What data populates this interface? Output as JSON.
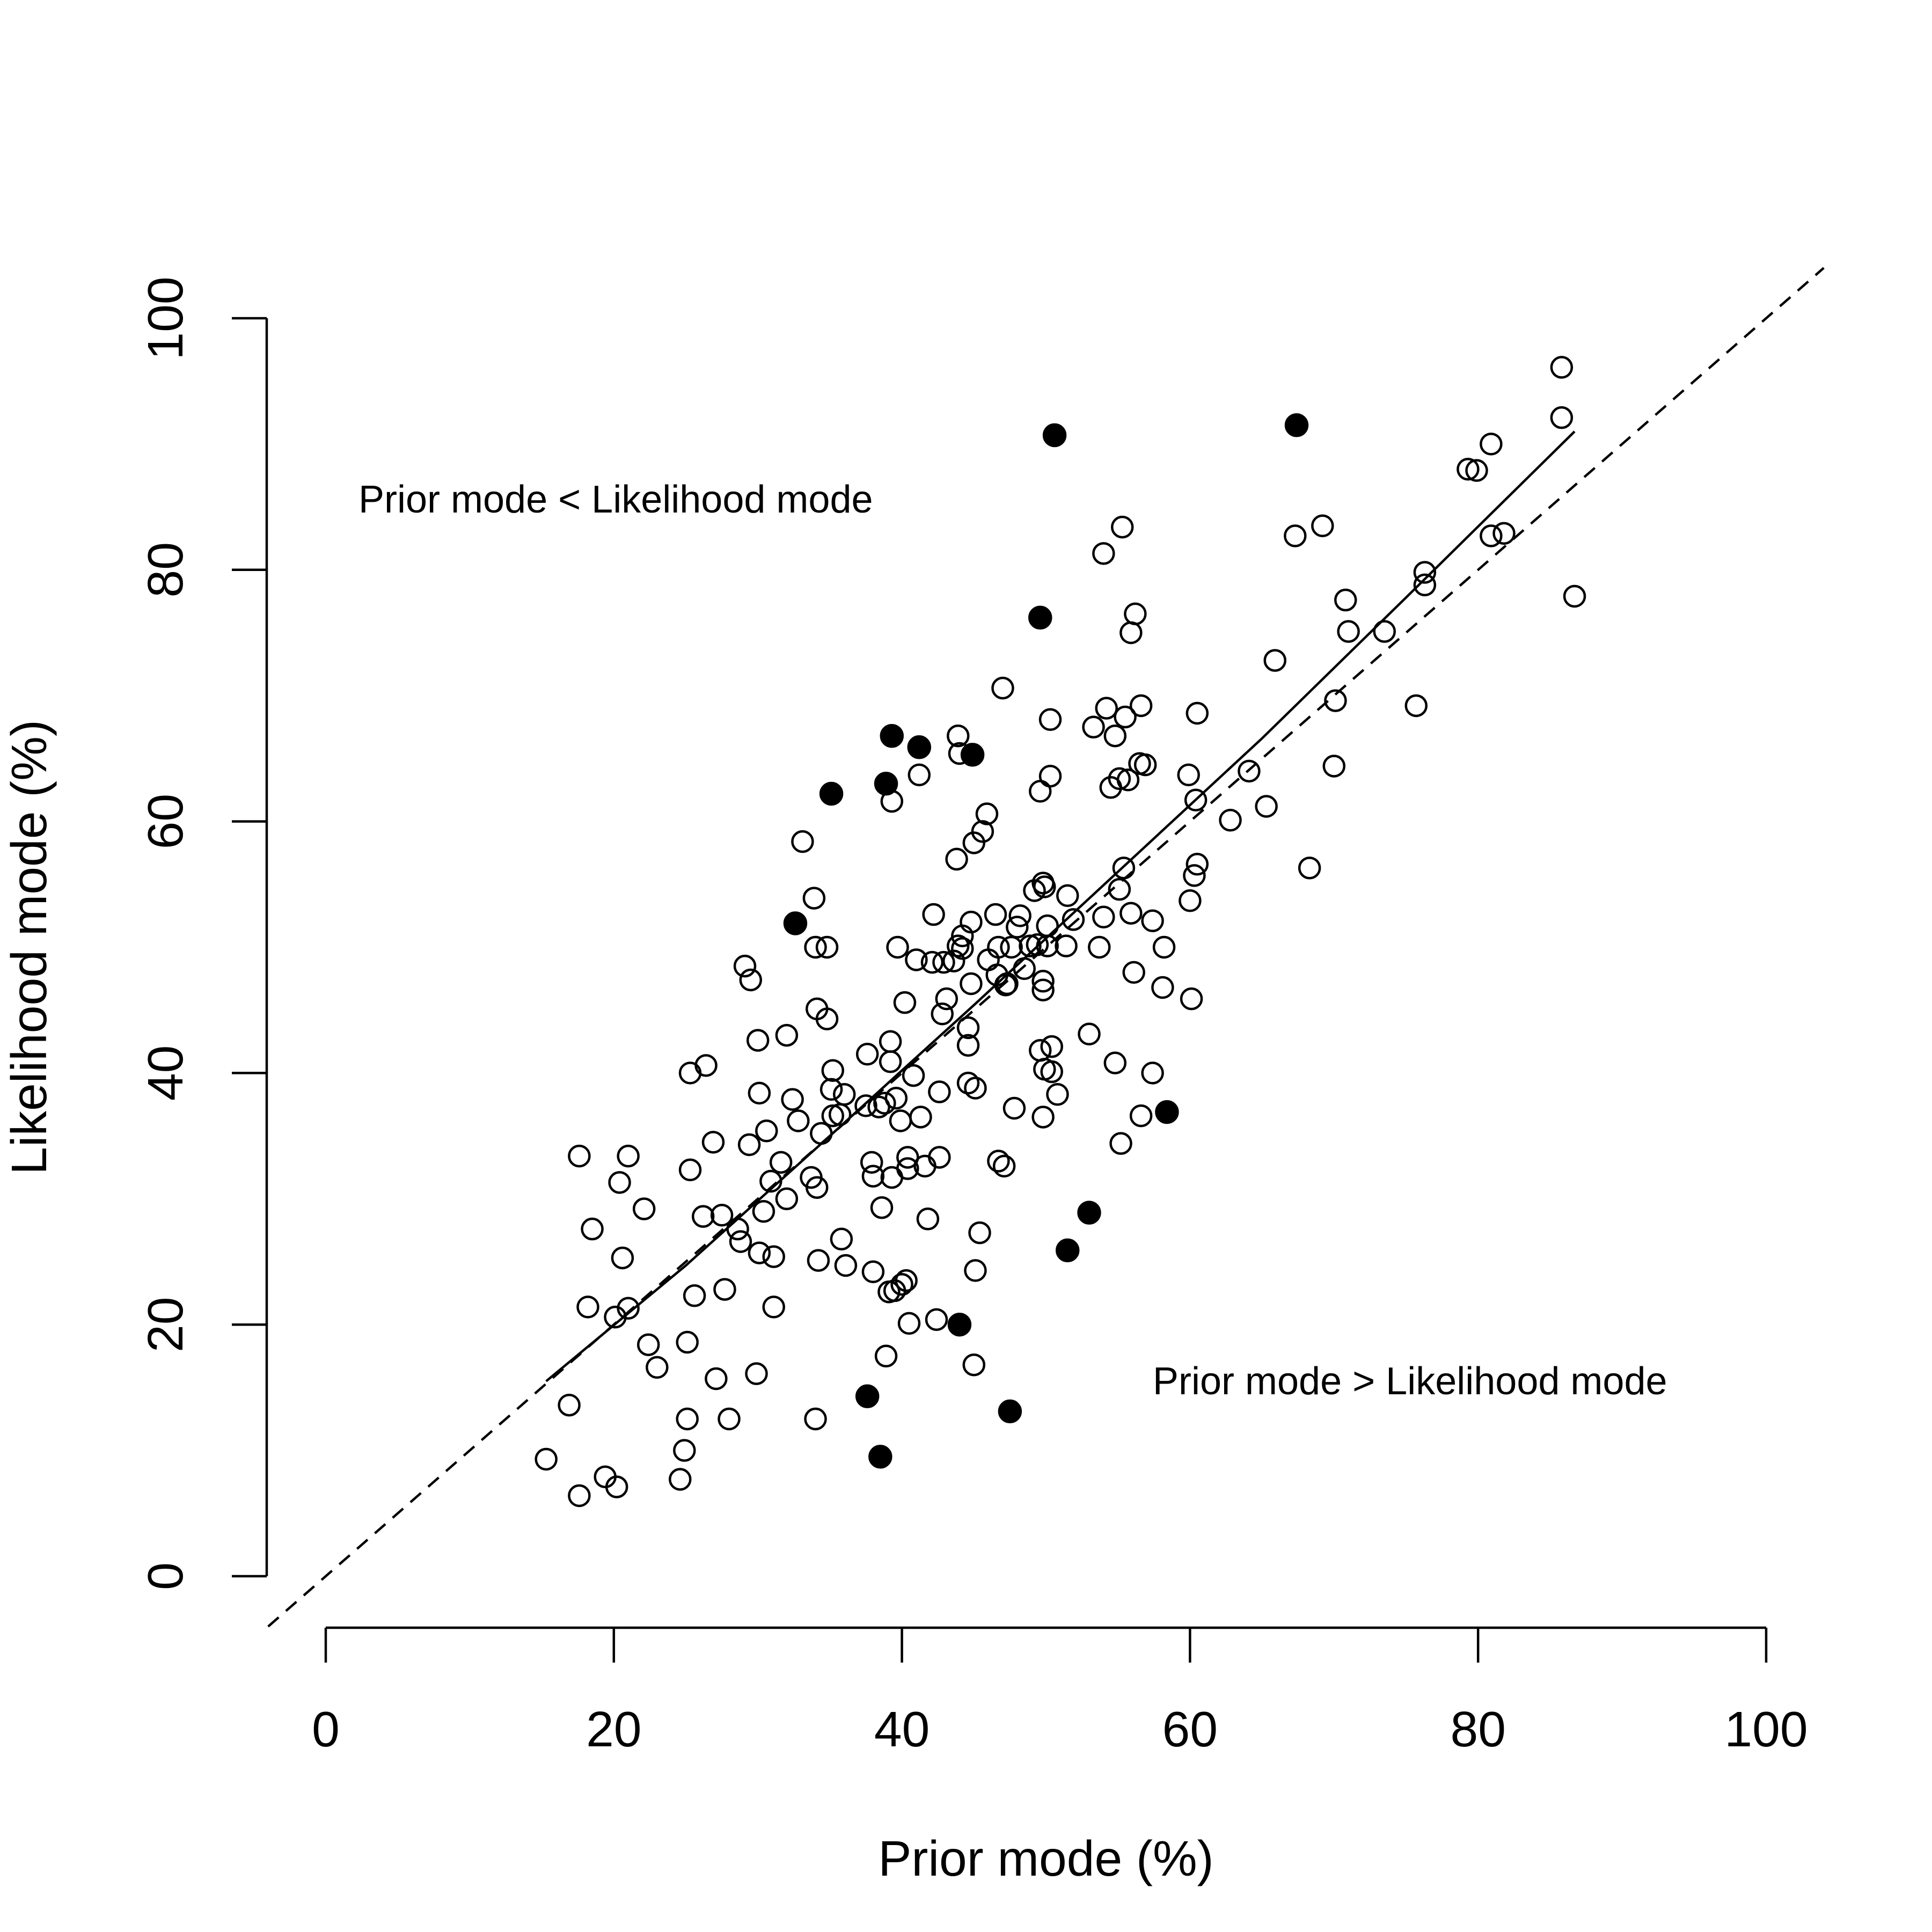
{
  "chart_data": {
    "type": "scatter",
    "xlabel": "Prior mode (%)",
    "ylabel": "Likelihood mode (%)",
    "xlim": [
      -4,
      104
    ],
    "ylim": [
      -4,
      104
    ],
    "x_ticks": [
      0,
      20,
      40,
      60,
      80,
      100
    ],
    "y_ticks": [
      0,
      20,
      40,
      60,
      80,
      100
    ],
    "x_tick_labels": [
      "0",
      "20",
      "40",
      "60",
      "80",
      "100"
    ],
    "y_tick_labels": [
      "0",
      "20",
      "40",
      "60",
      "80",
      "100"
    ],
    "annotations": {
      "upper": "Prior mode < Likelihood mode",
      "lower": "Prior mode > Likelihood mode"
    },
    "reference_line": {
      "style": "dashed",
      "points": [
        [
          -4,
          -4
        ],
        [
          104,
          104
        ]
      ]
    },
    "fit_line": {
      "style": "solid",
      "points": [
        [
          15.3,
          15.5
        ],
        [
          25,
          24.7
        ],
        [
          35,
          35.0
        ],
        [
          45,
          45.4
        ],
        [
          55,
          56.0
        ],
        [
          65,
          66.6
        ],
        [
          75,
          77.8
        ],
        [
          86.7,
          91.0
        ]
      ]
    },
    "series": [
      {
        "marker": "open-circle",
        "points": [
          [
            15.3,
            9.3
          ],
          [
            16.9,
            13.6
          ],
          [
            17.6,
            6.4
          ],
          [
            17.6,
            33.4
          ],
          [
            18.2,
            21.4
          ],
          [
            18.5,
            27.6
          ],
          [
            19.4,
            7.9
          ],
          [
            20.1,
            20.6
          ],
          [
            20.2,
            7.1
          ],
          [
            20.4,
            31.3
          ],
          [
            20.6,
            25.3
          ],
          [
            21,
            33.4
          ],
          [
            21,
            21.3
          ],
          [
            22.1,
            29.2
          ],
          [
            22.4,
            18.4
          ],
          [
            23,
            16.6
          ],
          [
            24.6,
            7.7
          ],
          [
            24.9,
            10.0
          ],
          [
            25.1,
            12.5
          ],
          [
            25.1,
            18.6
          ],
          [
            25.3,
            32.3
          ],
          [
            25.3,
            40.0
          ],
          [
            25.6,
            22.3
          ],
          [
            26.2,
            28.6
          ],
          [
            26.4,
            40.6
          ],
          [
            26.9,
            34.5
          ],
          [
            27.1,
            15.7
          ],
          [
            27.5,
            28.7
          ],
          [
            27.7,
            22.8
          ],
          [
            28,
            12.5
          ],
          [
            28.6,
            27.6
          ],
          [
            28.8,
            26.6
          ],
          [
            29.1,
            48.5
          ],
          [
            29.4,
            34.3
          ],
          [
            29.5,
            47.4
          ],
          [
            29.9,
            16.1
          ],
          [
            30,
            42.6
          ],
          [
            30.1,
            38.4
          ],
          [
            30.1,
            25.7
          ],
          [
            30.4,
            29.0
          ],
          [
            30.6,
            35.4
          ],
          [
            30.9,
            31.4
          ],
          [
            31.1,
            21.4
          ],
          [
            31.1,
            25.4
          ],
          [
            31.6,
            32.9
          ],
          [
            32,
            30.0
          ],
          [
            32,
            43.0
          ],
          [
            32.4,
            37.9
          ],
          [
            32.8,
            36.2
          ],
          [
            33.1,
            58.4
          ],
          [
            33.7,
            31.7
          ],
          [
            33.9,
            53.9
          ],
          [
            34,
            50.0
          ],
          [
            34.1,
            45.1
          ],
          [
            34,
            12.5
          ],
          [
            34.2,
            25.1
          ],
          [
            34.1,
            30.9
          ],
          [
            34.4,
            35.2
          ],
          [
            34.8,
            44.3
          ],
          [
            35.1,
            38.7
          ],
          [
            35.2,
            40.2
          ],
          [
            35.2,
            36.6
          ],
          [
            34.8,
            50.0
          ],
          [
            35.7,
            36.7
          ],
          [
            35.8,
            26.8
          ],
          [
            36,
            38.3
          ],
          [
            36.1,
            24.7
          ],
          [
            37.5,
            37.4
          ],
          [
            37.6,
            41.5
          ],
          [
            37.9,
            32.9
          ],
          [
            38,
            31.8
          ],
          [
            38,
            24.2
          ],
          [
            38.4,
            37.3
          ],
          [
            38.6,
            29.3
          ],
          [
            38.8,
            37.6
          ],
          [
            38.9,
            17.5
          ],
          [
            39.1,
            22.6
          ],
          [
            39.2,
            42.5
          ],
          [
            39.2,
            40.9
          ],
          [
            39.3,
            31.7
          ],
          [
            39.3,
            61.6
          ],
          [
            39.5,
            22.7
          ],
          [
            39.6,
            38.0
          ],
          [
            39.7,
            50.0
          ],
          [
            39.9,
            36.2
          ],
          [
            40,
            23.2
          ],
          [
            40.2,
            45.6
          ],
          [
            40.4,
            32.4
          ],
          [
            40.4,
            33.3
          ],
          [
            40.3,
            23.5
          ],
          [
            40.5,
            20.1
          ],
          [
            40.8,
            39.8
          ],
          [
            41,
            49.0
          ],
          [
            41.2,
            63.7
          ],
          [
            41.3,
            36.5
          ],
          [
            41.6,
            32.6
          ],
          [
            41.8,
            28.4
          ],
          [
            42.1,
            48.8
          ],
          [
            42.2,
            52.6
          ],
          [
            42.4,
            20.4
          ],
          [
            42.6,
            38.5
          ],
          [
            42.6,
            33.3
          ],
          [
            42.8,
            44.7
          ],
          [
            42.9,
            48.8
          ],
          [
            43.1,
            45.9
          ],
          [
            43.6,
            48.9
          ],
          [
            43.8,
            57.0
          ],
          [
            43.9,
            66.8
          ],
          [
            43.9,
            50.1
          ],
          [
            44,
            65.4
          ],
          [
            44.2,
            50.9
          ],
          [
            44.2,
            49.9
          ],
          [
            44.6,
            43.6
          ],
          [
            44.6,
            42.2
          ],
          [
            44.6,
            39.2
          ],
          [
            44.8,
            47.1
          ],
          [
            44.8,
            52.0
          ],
          [
            45,
            58.3
          ],
          [
            45.1,
            24.3
          ],
          [
            45,
            16.8
          ],
          [
            45.1,
            38.8
          ],
          [
            45.4,
            27.3
          ],
          [
            45.6,
            59.2
          ],
          [
            45.9,
            60.6
          ],
          [
            46,
            49.0
          ],
          [
            46.5,
            52.6
          ],
          [
            46.6,
            47.8
          ],
          [
            46.7,
            50.0
          ],
          [
            46.7,
            33.0
          ],
          [
            47,
            70.6
          ],
          [
            47.1,
            32.6
          ],
          [
            47.2,
            47.0
          ],
          [
            47.3,
            47.1
          ],
          [
            47.6,
            50.0
          ],
          [
            47.8,
            37.2
          ],
          [
            48,
            51.6
          ],
          [
            48.2,
            52.5
          ],
          [
            48.5,
            48.3
          ],
          [
            48.9,
            50.1
          ],
          [
            49.2,
            54.5
          ],
          [
            49.4,
            50.2
          ],
          [
            49.6,
            62.4
          ],
          [
            49.6,
            41.8
          ],
          [
            49.8,
            55.1
          ],
          [
            49.9,
            54.8
          ],
          [
            49.8,
            47.3
          ],
          [
            49.8,
            46.6
          ],
          [
            49.9,
            40.3
          ],
          [
            49.8,
            36.5
          ],
          [
            50.1,
            51.7
          ],
          [
            50.1,
            50.1
          ],
          [
            50.3,
            68.1
          ],
          [
            50.3,
            63.6
          ],
          [
            50.4,
            42.1
          ],
          [
            50.4,
            40.1
          ],
          [
            50.8,
            38.3
          ],
          [
            51.4,
            50.1
          ],
          [
            51.5,
            54.1
          ],
          [
            51.9,
            52.2
          ],
          [
            53,
            43.1
          ],
          [
            53.3,
            67.5
          ],
          [
            53.7,
            50.0
          ],
          [
            54,
            52.4
          ],
          [
            54,
            81.3
          ],
          [
            54.2,
            69.0
          ],
          [
            54.5,
            62.7
          ],
          [
            54.8,
            66.8
          ],
          [
            54.8,
            40.8
          ],
          [
            55.1,
            54.6
          ],
          [
            55.1,
            63.4
          ],
          [
            55.2,
            34.4
          ],
          [
            55.3,
            83.4
          ],
          [
            55.4,
            56.3
          ],
          [
            55.5,
            68.3
          ],
          [
            55.7,
            63.3
          ],
          [
            55.9,
            52.7
          ],
          [
            55.9,
            75.0
          ],
          [
            56.1,
            48.0
          ],
          [
            56.2,
            76.5
          ],
          [
            56.5,
            64.6
          ],
          [
            56.6,
            36.6
          ],
          [
            56.6,
            69.2
          ],
          [
            56.9,
            64.5
          ],
          [
            57.4,
            40.0
          ],
          [
            57.4,
            52.1
          ],
          [
            58.1,
            46.8
          ],
          [
            58.2,
            50.0
          ],
          [
            59.9,
            63.7
          ],
          [
            60,
            53.7
          ],
          [
            60.1,
            45.9
          ],
          [
            60.3,
            55.7
          ],
          [
            60.4,
            61.7
          ],
          [
            60.5,
            68.6
          ],
          [
            60.5,
            56.6
          ],
          [
            62.8,
            60.1
          ],
          [
            64.1,
            64.0
          ],
          [
            65.3,
            61.2
          ],
          [
            65.9,
            72.8
          ],
          [
            67.3,
            82.7
          ],
          [
            68.3,
            56.3
          ],
          [
            69.2,
            83.5
          ],
          [
            70,
            64.4
          ],
          [
            70.1,
            69.6
          ],
          [
            70.8,
            77.6
          ],
          [
            71,
            75.1
          ],
          [
            73.5,
            75.1
          ],
          [
            75.7,
            69.2
          ],
          [
            76.3,
            79.8
          ],
          [
            76.3,
            78.8
          ],
          [
            79.3,
            88.0
          ],
          [
            79.9,
            87.9
          ],
          [
            80.9,
            82.7
          ],
          [
            80.9,
            90.0
          ],
          [
            81.8,
            82.9
          ],
          [
            85.8,
            96.1
          ],
          [
            85.8,
            92.1
          ],
          [
            86.7,
            77.9
          ]
        ]
      },
      {
        "marker": "filled-circle",
        "points": [
          [
            32.6,
            51.9
          ],
          [
            35.1,
            62.2
          ],
          [
            37.6,
            14.3
          ],
          [
            38.5,
            9.5
          ],
          [
            38.9,
            63.0
          ],
          [
            39.3,
            66.8
          ],
          [
            41.2,
            65.9
          ],
          [
            44.0,
            20.0
          ],
          [
            44.9,
            65.3
          ],
          [
            47.5,
            13.1
          ],
          [
            49.6,
            76.2
          ],
          [
            50.6,
            90.7
          ],
          [
            51.5,
            25.9
          ],
          [
            53.0,
            28.9
          ],
          [
            58.4,
            36.9
          ],
          [
            67.4,
            91.5
          ]
        ]
      }
    ]
  }
}
